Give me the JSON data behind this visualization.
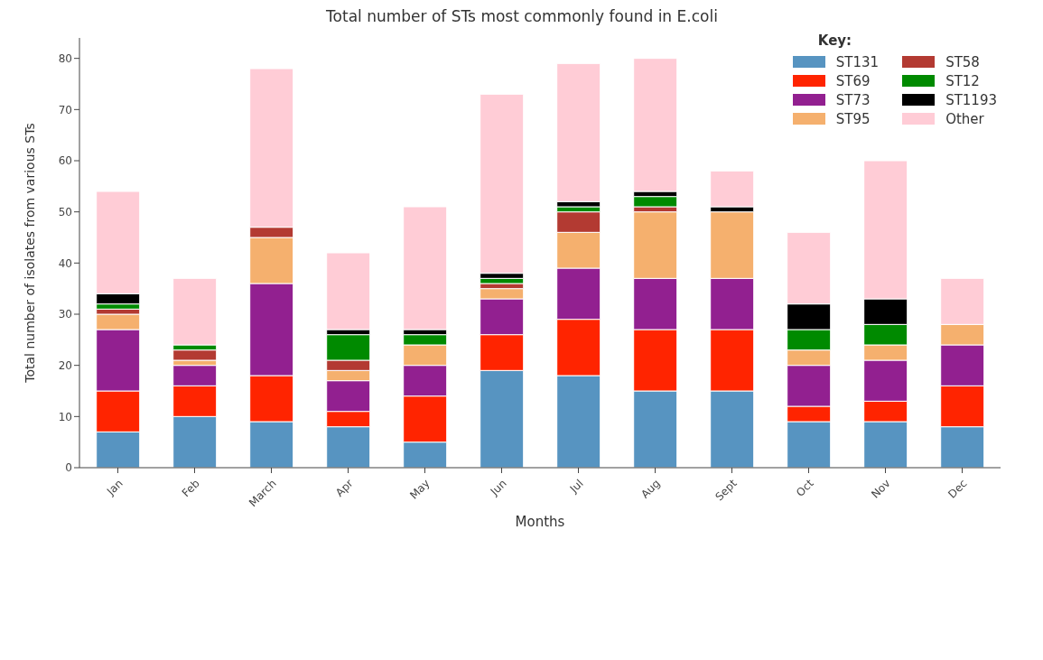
{
  "chart_data": {
    "type": "bar",
    "title": "Total number of STs most commonly found in E.coli",
    "xlabel": "Months",
    "ylabel": "Total number of isolates from various STs",
    "legend_title": "Key:",
    "stacked": true,
    "categories": [
      "Jan",
      "Feb",
      "March",
      "Apr",
      "May",
      "Jun",
      "Jul",
      "Aug",
      "Sept",
      "Oct",
      "Nov",
      "Dec"
    ],
    "series": [
      {
        "name": "ST131",
        "color": "#5794c1",
        "values": [
          7,
          10,
          9,
          8,
          5,
          19,
          18,
          15,
          15,
          9,
          9,
          8
        ]
      },
      {
        "name": "ST69",
        "color": "#ff2400",
        "values": [
          8,
          6,
          9,
          3,
          9,
          7,
          11,
          12,
          12,
          3,
          4,
          8
        ]
      },
      {
        "name": "ST73",
        "color": "#922090",
        "values": [
          12,
          4,
          18,
          6,
          6,
          7,
          10,
          10,
          10,
          8,
          8,
          8
        ]
      },
      {
        "name": "ST95",
        "color": "#f5b06e",
        "values": [
          3,
          1,
          9,
          2,
          4,
          2,
          7,
          13,
          13,
          3,
          3,
          4
        ]
      },
      {
        "name": "ST58",
        "color": "#b33a32",
        "values": [
          1,
          2,
          2,
          2,
          0,
          1,
          4,
          1,
          0,
          0,
          0,
          0
        ]
      },
      {
        "name": "ST12",
        "color": "#008a00",
        "values": [
          1,
          1,
          0,
          5,
          2,
          1,
          1,
          2,
          0,
          4,
          4,
          0
        ]
      },
      {
        "name": "ST1193",
        "color": "#000000",
        "values": [
          2,
          0,
          0,
          1,
          1,
          1,
          1,
          1,
          1,
          5,
          5,
          0
        ]
      },
      {
        "name": "Other",
        "color": "#ffccd6",
        "values": [
          20,
          13,
          31,
          15,
          24,
          35,
          27,
          26,
          7,
          14,
          27,
          9
        ]
      }
    ],
    "ylim": [
      0,
      84
    ],
    "yticks": [
      0,
      10,
      20,
      30,
      40,
      50,
      60,
      70,
      80
    ],
    "grid": false,
    "legend": "top right"
  }
}
